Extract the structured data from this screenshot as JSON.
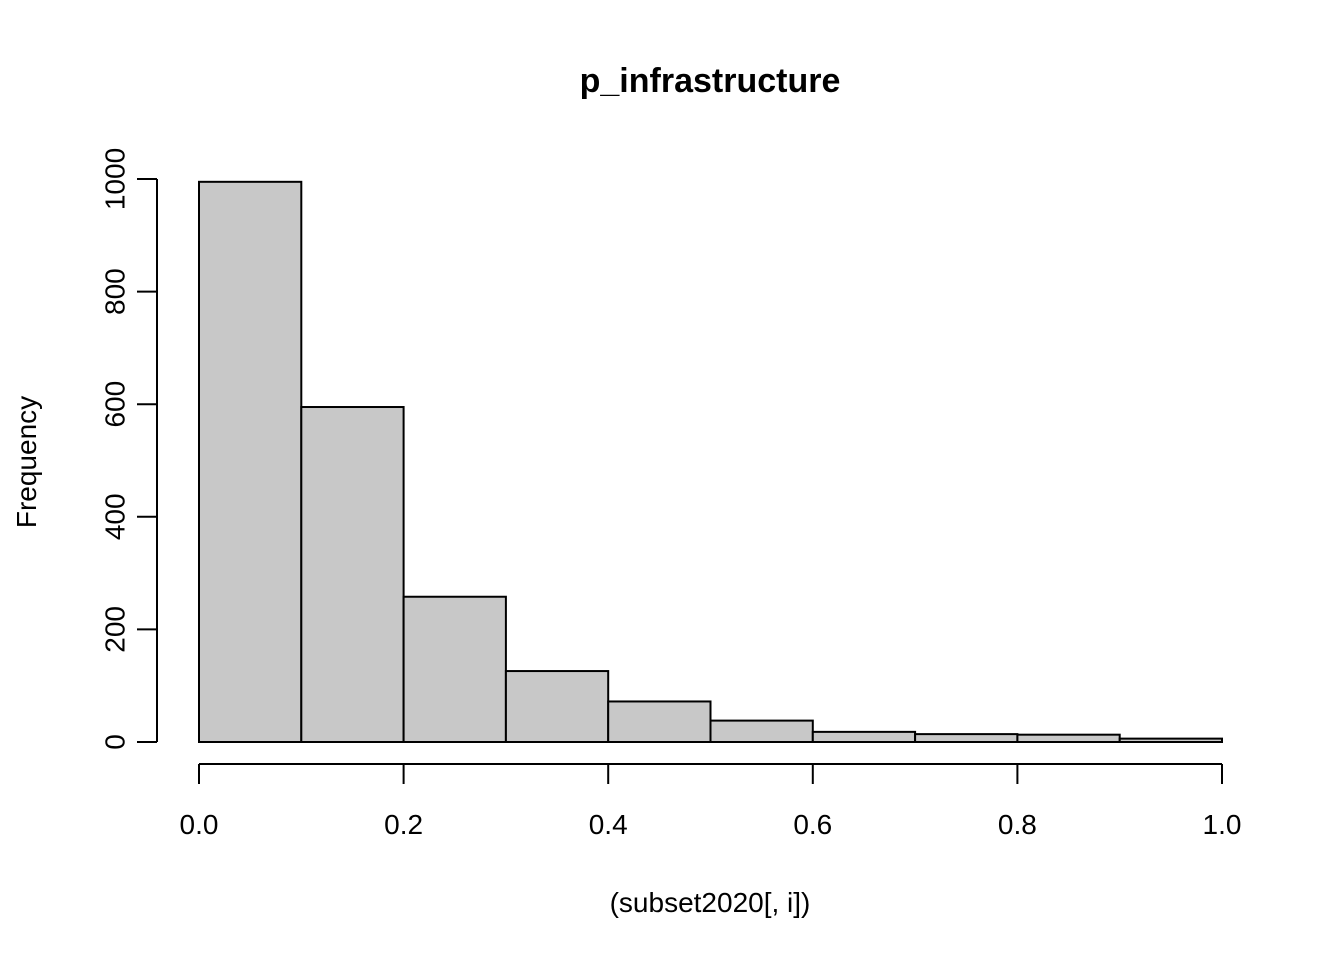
{
  "chart_data": {
    "type": "bar",
    "title": "p_infrastructure",
    "xlabel": "(subset2020[, i])",
    "ylabel": "Frequency",
    "bins": [
      {
        "start": 0.0,
        "end": 0.1,
        "count": 995
      },
      {
        "start": 0.1,
        "end": 0.2,
        "count": 595
      },
      {
        "start": 0.2,
        "end": 0.3,
        "count": 258
      },
      {
        "start": 0.3,
        "end": 0.4,
        "count": 126
      },
      {
        "start": 0.4,
        "end": 0.5,
        "count": 72
      },
      {
        "start": 0.5,
        "end": 0.6,
        "count": 38
      },
      {
        "start": 0.6,
        "end": 0.7,
        "count": 18
      },
      {
        "start": 0.7,
        "end": 0.8,
        "count": 14
      },
      {
        "start": 0.8,
        "end": 0.9,
        "count": 13
      },
      {
        "start": 0.9,
        "end": 1.0,
        "count": 6
      }
    ],
    "xlim": [
      0,
      1
    ],
    "ylim": [
      0,
      1000
    ],
    "x_ticks": [
      "0.0",
      "0.2",
      "0.4",
      "0.6",
      "0.8",
      "1.0"
    ],
    "y_ticks": [
      "0",
      "200",
      "400",
      "600",
      "800",
      "1000"
    ],
    "bar_color": "#c8c8c8",
    "grid": false,
    "legend": "none"
  }
}
